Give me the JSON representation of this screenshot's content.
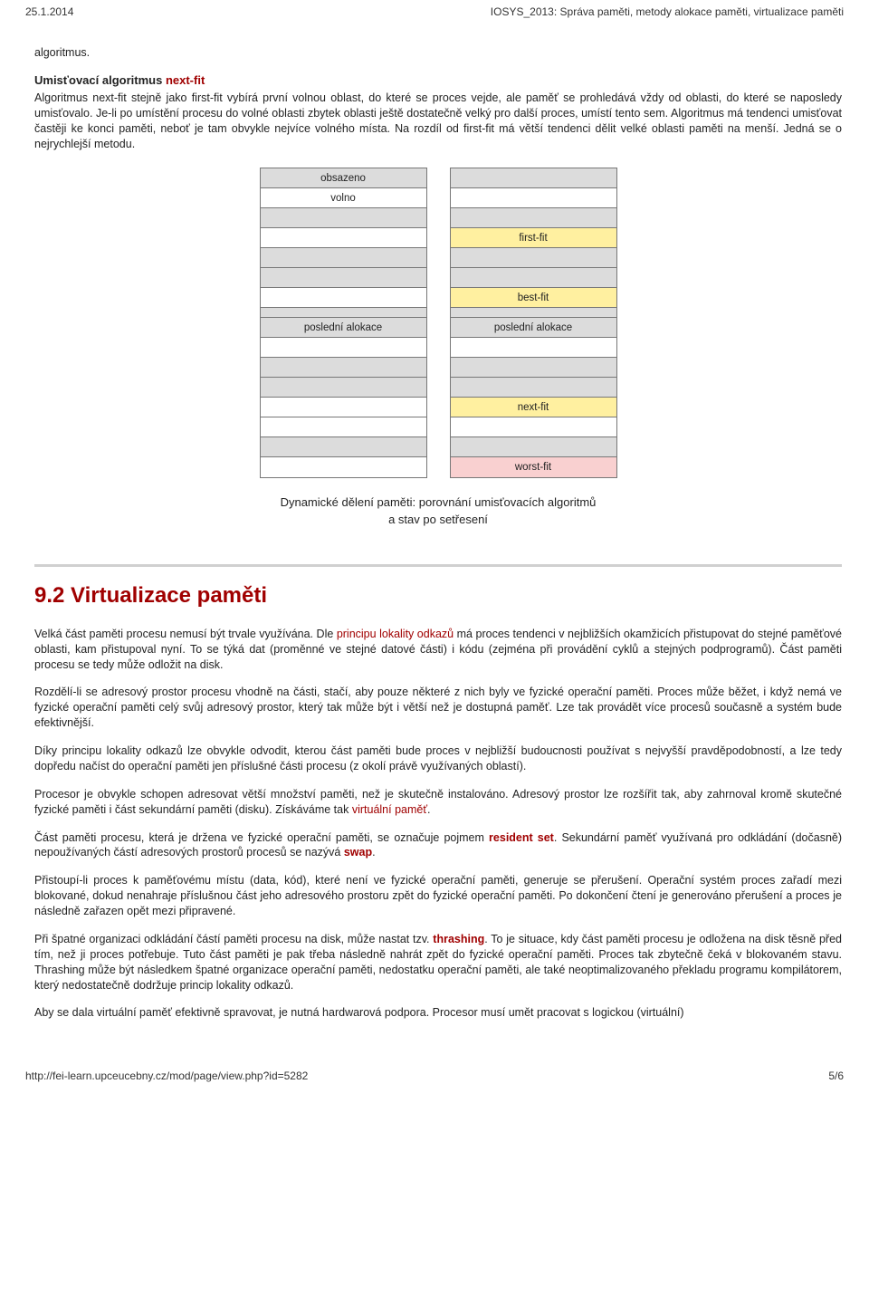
{
  "header": {
    "date": "25.1.2014",
    "title": "IOSYS_2013: Správa paměti, metody alokace paměti, virtualizace paměti"
  },
  "intro": {
    "word": "algoritmus."
  },
  "nextfit": {
    "title_prefix": "Umisťovací algoritmus ",
    "title_term": "next-fit",
    "body": "Algoritmus next-fit stejně jako first-fit vybírá první volnou oblast, do které se proces vejde, ale paměť se prohledává vždy od oblasti, do které se naposledy umisťovalo. Je-li po umístění procesu do volné oblasti zbytek oblasti ještě dostatečně velký pro další proces, umístí tento sem. Algoritmus má tendenci umisťovat častěji ke konci paměti, neboť je tam obvykle nejvíce volného místa. Na rozdíl od first-fit má větší tendenci dělit velké oblasti paměti na menší. Jedná se o nejrychlejší metodu."
  },
  "diagram": {
    "left": [
      {
        "label": "obsazeno",
        "bg": "gray",
        "h": "n"
      },
      {
        "label": "volno",
        "bg": "",
        "h": "n"
      },
      {
        "label": "",
        "bg": "gray",
        "h": "n"
      },
      {
        "label": "",
        "bg": "",
        "h": "n"
      },
      {
        "label": "",
        "bg": "gray",
        "h": "n"
      },
      {
        "label": "",
        "bg": "gray",
        "h": "n"
      },
      {
        "label": "",
        "bg": "",
        "h": "n"
      },
      {
        "label": "",
        "bg": "gray",
        "h": "s"
      },
      {
        "label": "poslední alokace",
        "bg": "gray",
        "h": "n"
      },
      {
        "label": "",
        "bg": "",
        "h": "n"
      },
      {
        "label": "",
        "bg": "gray",
        "h": "n"
      },
      {
        "label": "",
        "bg": "gray",
        "h": "n"
      },
      {
        "label": "",
        "bg": "",
        "h": "n"
      },
      {
        "label": "",
        "bg": "",
        "h": "n"
      },
      {
        "label": "",
        "bg": "gray",
        "h": "n"
      },
      {
        "label": "",
        "bg": "",
        "h": "n"
      }
    ],
    "right": [
      {
        "label": "",
        "bg": "gray",
        "h": "n"
      },
      {
        "label": "",
        "bg": "",
        "h": "n"
      },
      {
        "label": "",
        "bg": "gray",
        "h": "n"
      },
      {
        "label": "first-fit",
        "bg": "yellow",
        "h": "n"
      },
      {
        "label": "",
        "bg": "gray",
        "h": "n"
      },
      {
        "label": "",
        "bg": "gray",
        "h": "n"
      },
      {
        "label": "best-fit",
        "bg": "yellow",
        "h": "n"
      },
      {
        "label": "",
        "bg": "gray",
        "h": "s"
      },
      {
        "label": "poslední alokace",
        "bg": "gray",
        "h": "n"
      },
      {
        "label": "",
        "bg": "",
        "h": "n"
      },
      {
        "label": "",
        "bg": "gray",
        "h": "n"
      },
      {
        "label": "",
        "bg": "gray",
        "h": "n"
      },
      {
        "label": "next-fit",
        "bg": "yellow",
        "h": "n"
      },
      {
        "label": "",
        "bg": "",
        "h": "n"
      },
      {
        "label": "",
        "bg": "gray",
        "h": "n"
      },
      {
        "label": "worst-fit",
        "bg": "pink",
        "h": "n"
      }
    ]
  },
  "caption": {
    "line1": "Dynamické dělení paměti: porovnání umisťovacích algoritmů",
    "line2": "a stav po setřesení"
  },
  "section": {
    "heading": "9.2 Virtualizace paměti"
  },
  "paras": {
    "p1a": "Velká část paměti procesu nemusí být trvale využívána. Dle ",
    "p1b": "principu lokality odkazů",
    "p1c": " má proces tendenci v nejbližších okamžicích přistupovat do stejné paměťové oblasti, kam přistupoval nyní. To se týká dat (proměnné ve stejné datové části) i kódu (zejména při provádění cyklů a stejných podprogramů). Část paměti procesu se tedy může odložit na disk.",
    "p2": "Rozdělí-li se adresový prostor procesu vhodně na části, stačí, aby pouze některé z nich byly ve fyzické operační paměti. Proces může běžet, i když nemá ve fyzické operační paměti celý svůj adresový prostor, který tak může být i větší než je dostupná paměť. Lze tak provádět více procesů současně a systém bude efektivnější.",
    "p3": "Díky principu lokality odkazů lze obvykle odvodit, kterou část paměti bude proces v nejbližší budoucnosti používat s nejvyšší pravděpodobností, a lze tedy dopředu načíst do operační paměti jen příslušné části procesu (z okolí právě využívaných oblastí).",
    "p4a": "Procesor je obvykle schopen adresovat větší množství paměti, než je skutečně instalováno. Adresový prostor lze rozšířit tak, aby zahrnoval kromě skutečné fyzické paměti i část sekundární paměti (disku). Získáváme tak ",
    "p4b": "virtuální paměť",
    "p4c": ".",
    "p5a": "Část paměti procesu, která je držena ve fyzické operační paměti, se označuje pojmem ",
    "p5b": "resident set",
    "p5c": ". Sekundární paměť využívaná pro odkládání (dočasně) nepoužívaných částí adresových prostorů procesů se nazývá ",
    "p5d": "swap",
    "p5e": ".",
    "p6": "Přistoupí-li proces k paměťovému místu (data, kód), které není ve fyzické operační paměti, generuje se přerušení. Operační systém proces zařadí mezi blokované, dokud nenahraje příslušnou část jeho adresového prostoru zpět do fyzické operační paměti. Po dokončení čtení je generováno přerušení a proces je následně zařazen opět mezi připravené.",
    "p7a": "Při špatné organizaci odkládání částí paměti procesu na disk, může nastat tzv. ",
    "p7b": "thrashing",
    "p7c": ". To je situace, kdy část paměti procesu je odložena na disk těsně před tím, než ji proces potřebuje. Tuto část paměti je pak třeba následně nahrát zpět do fyzické operační paměti. Proces tak zbytečně čeká v blokovaném stavu. Thrashing může být následkem špatné organizace operační paměti, nedostatku operační paměti, ale také neoptimalizovaného překladu programu kompilátorem, který nedostatečně dodržuje princip lokality odkazů.",
    "p8": "Aby se dala virtuální paměť efektivně spravovat, je nutná hardwarová podpora. Procesor musí umět pracovat s logickou (virtuální)"
  },
  "footer": {
    "url": "http://fei-learn.upceucebny.cz/mod/page/view.php?id=5282",
    "page": "5/6"
  }
}
